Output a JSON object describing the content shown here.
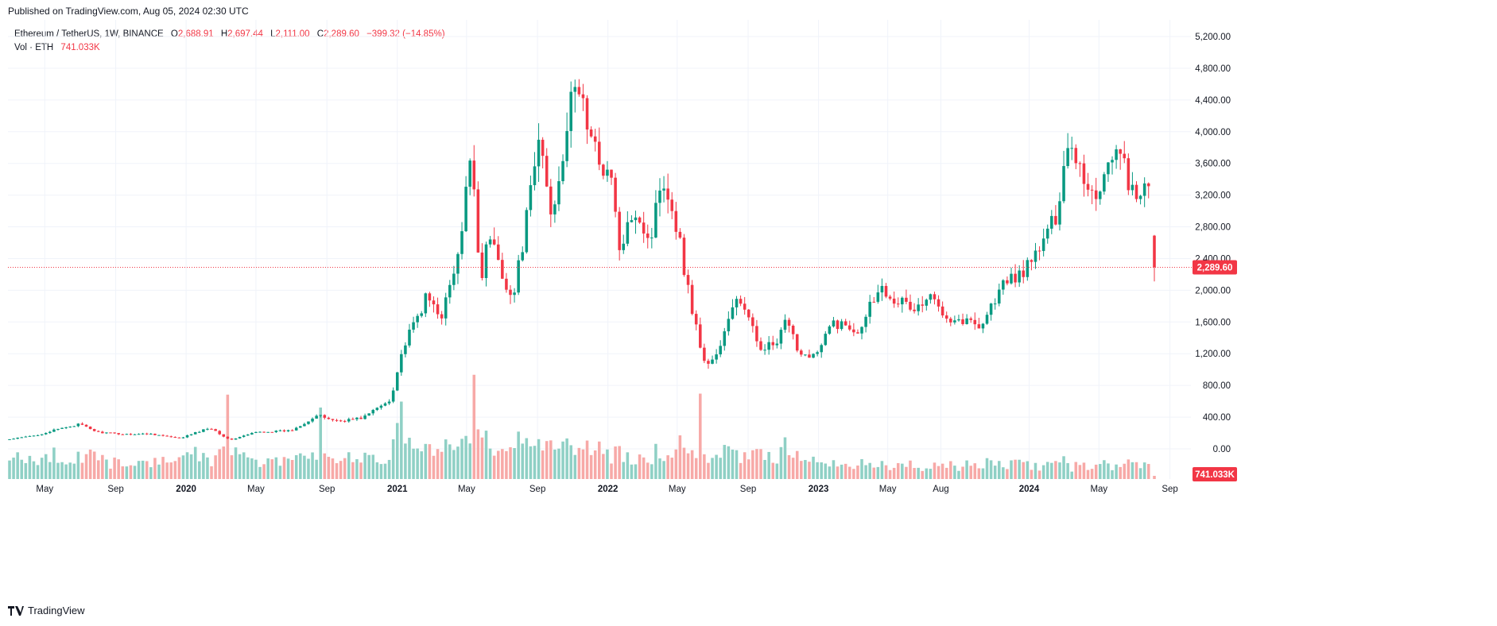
{
  "header": {
    "published": "Published on TradingView.com, Aug 05, 2024 02:30 UTC"
  },
  "legend": {
    "symbol": "Ethereum / TetherUS, 1W, BINANCE",
    "o_label": "O",
    "o_value": "2,688.91",
    "h_label": "H",
    "h_value": "2,697.44",
    "l_label": "L",
    "l_value": "2,111.00",
    "c_label": "C",
    "c_value": "2,289.60",
    "change": "−399.32 (−14.85%)",
    "vol_label": "Vol · ETH",
    "vol_value": "741.033K"
  },
  "footer": {
    "brand": "TradingView"
  },
  "colors": {
    "up": "#089981",
    "down": "#f23645",
    "vol_up": "#8fd0c5",
    "vol_down": "#f7a9a7",
    "grid": "#f0f3fa"
  },
  "chart_data": {
    "type": "candlestick",
    "symbol": "Ethereum / TetherUS",
    "interval": "1W",
    "exchange": "BINANCE",
    "y_axis": {
      "range": [
        -200,
        5400
      ],
      "ticks": [
        "5,200.00",
        "4,800.00",
        "4,400.00",
        "4,000.00",
        "3,600.00",
        "3,200.00",
        "2,800.00",
        "2,400.00",
        "2,000.00",
        "1,600.00",
        "1,200.00",
        "800.00",
        "400.00",
        "0.00"
      ],
      "tick_values": [
        5200,
        4800,
        4400,
        4000,
        3600,
        3200,
        2800,
        2400,
        2000,
        1600,
        1200,
        800,
        400,
        0
      ]
    },
    "x_axis": {
      "labels": [
        "May",
        "Sep",
        "2020",
        "May",
        "Sep",
        "2021",
        "May",
        "Sep",
        "2022",
        "May",
        "Sep",
        "2023",
        "May",
        "Aug",
        "2024",
        "May",
        "Sep"
      ]
    },
    "last_price": {
      "value": 2289.6,
      "label": "2,289.60"
    },
    "last_volume": {
      "label": "741.033K"
    },
    "anchors": [
      {
        "t": "2019-03-01",
        "p": 120
      },
      {
        "t": "2019-04-15",
        "p": 170
      },
      {
        "t": "2019-06-10",
        "p": 280
      },
      {
        "t": "2019-06-30",
        "p": 310
      },
      {
        "t": "2019-08-01",
        "p": 210
      },
      {
        "t": "2019-09-15",
        "p": 185
      },
      {
        "t": "2019-11-01",
        "p": 190
      },
      {
        "t": "2019-12-20",
        "p": 130
      },
      {
        "t": "2020-02-12",
        "p": 270
      },
      {
        "t": "2020-03-16",
        "p": 110
      },
      {
        "t": "2020-05-01",
        "p": 210
      },
      {
        "t": "2020-07-01",
        "p": 230
      },
      {
        "t": "2020-08-15",
        "p": 420
      },
      {
        "t": "2020-09-20",
        "p": 350
      },
      {
        "t": "2020-11-01",
        "p": 390
      },
      {
        "t": "2020-12-20",
        "p": 620
      },
      {
        "t": "2021-01-10",
        "p": 1250
      },
      {
        "t": "2021-02-20",
        "p": 1900
      },
      {
        "t": "2021-03-20",
        "p": 1700
      },
      {
        "t": "2021-04-20",
        "p": 2500
      },
      {
        "t": "2021-05-10",
        "p": 3900
      },
      {
        "t": "2021-05-24",
        "p": 2100
      },
      {
        "t": "2021-06-10",
        "p": 2700
      },
      {
        "t": "2021-07-20",
        "p": 1850
      },
      {
        "t": "2021-08-20",
        "p": 3200
      },
      {
        "t": "2021-09-05",
        "p": 3950
      },
      {
        "t": "2021-09-25",
        "p": 2900
      },
      {
        "t": "2021-10-25",
        "p": 4200
      },
      {
        "t": "2021-11-10",
        "p": 4650
      },
      {
        "t": "2021-12-05",
        "p": 3800
      },
      {
        "t": "2022-01-05",
        "p": 3450
      },
      {
        "t": "2022-01-24",
        "p": 2400
      },
      {
        "t": "2022-02-15",
        "p": 3100
      },
      {
        "t": "2022-03-15",
        "p": 2600
      },
      {
        "t": "2022-04-05",
        "p": 3500
      },
      {
        "t": "2022-05-01",
        "p": 2800
      },
      {
        "t": "2022-05-20",
        "p": 2000
      },
      {
        "t": "2022-06-18",
        "p": 1050
      },
      {
        "t": "2022-07-10",
        "p": 1200
      },
      {
        "t": "2022-08-14",
        "p": 1950
      },
      {
        "t": "2022-09-20",
        "p": 1300
      },
      {
        "t": "2022-10-20",
        "p": 1300
      },
      {
        "t": "2022-11-05",
        "p": 1600
      },
      {
        "t": "2022-12-01",
        "p": 1200
      },
      {
        "t": "2022-12-31",
        "p": 1200
      },
      {
        "t": "2023-01-25",
        "p": 1600
      },
      {
        "t": "2023-03-10",
        "p": 1500
      },
      {
        "t": "2023-04-15",
        "p": 2050
      },
      {
        "t": "2023-06-15",
        "p": 1750
      },
      {
        "t": "2023-07-15",
        "p": 1900
      },
      {
        "t": "2023-08-20",
        "p": 1650
      },
      {
        "t": "2023-10-10",
        "p": 1570
      },
      {
        "t": "2023-11-15",
        "p": 2050
      },
      {
        "t": "2024-01-01",
        "p": 2300
      },
      {
        "t": "2024-02-15",
        "p": 2900
      },
      {
        "t": "2024-03-10",
        "p": 3950
      },
      {
        "t": "2024-04-01",
        "p": 3500
      },
      {
        "t": "2024-04-25",
        "p": 3150
      },
      {
        "t": "2024-05-25",
        "p": 3800
      },
      {
        "t": "2024-06-15",
        "p": 3550
      },
      {
        "t": "2024-07-07",
        "p": 3000
      },
      {
        "t": "2024-07-25",
        "p": 3450
      },
      {
        "t": "2024-08-05",
        "p": 2290
      }
    ],
    "volume_spikes": [
      {
        "t": "2020-03-16",
        "v": 850
      },
      {
        "t": "2020-08-24",
        "v": 720
      },
      {
        "t": "2021-01-10",
        "v": 780
      },
      {
        "t": "2021-05-17",
        "v": 1050
      },
      {
        "t": "2022-05-09",
        "v": 440
      },
      {
        "t": "2022-06-13",
        "v": 860
      },
      {
        "t": "2022-11-07",
        "v": 420
      }
    ]
  }
}
